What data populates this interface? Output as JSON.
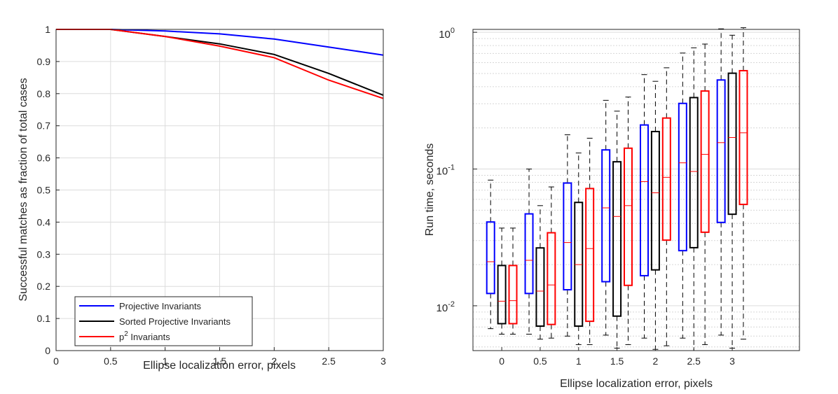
{
  "chart_data": [
    {
      "type": "line",
      "title": "",
      "xlabel": "Ellipse localization error, pixels",
      "ylabel": "Successful matches as fraction of total cases",
      "xlim": [
        0,
        3
      ],
      "ylim": [
        0,
        1
      ],
      "grid": true,
      "legend_position": "bottom-left",
      "x": [
        0,
        0.5,
        1,
        1.5,
        2,
        2.5,
        3
      ],
      "xtick_labels": [
        "0",
        "0.5",
        "1",
        "1.5",
        "2",
        "2.5",
        "3"
      ],
      "ytick_labels": [
        "0",
        "0.1",
        "0.2",
        "0.3",
        "0.4",
        "0.5",
        "0.6",
        "0.7",
        "0.8",
        "0.9",
        "1"
      ],
      "series": [
        {
          "name": "Projective Invariants",
          "color": "#0000ff",
          "values": [
            1,
            1,
            0.995,
            0.986,
            0.97,
            0.945,
            0.92
          ]
        },
        {
          "name": "Sorted Projective Invariants",
          "color": "#000000",
          "values": [
            1,
            1,
            0.978,
            0.955,
            0.922,
            0.863,
            0.795
          ]
        },
        {
          "name": "p2 Invariants",
          "legend_base": "p",
          "legend_sup": "2",
          "legend_rest": " Invariants",
          "color": "#ff0000",
          "values": [
            1,
            1,
            0.978,
            0.948,
            0.912,
            0.842,
            0.785
          ]
        }
      ]
    },
    {
      "type": "box",
      "title": "",
      "xlabel": "Ellipse localization error, pixels",
      "ylabel": "Run time, seconds",
      "yscale": "log",
      "ylim": [
        0.0047,
        1.05
      ],
      "grid": true,
      "categories": [
        "0",
        "0.5",
        "1",
        "1.5",
        "2",
        "2.5",
        "3"
      ],
      "ytick_labels": [
        {
          "base": "10",
          "exp": "-2",
          "value": 0.01
        },
        {
          "base": "10",
          "exp": "-1",
          "value": 0.1
        },
        {
          "base": "10",
          "exp": "0",
          "value": 1
        }
      ],
      "series": [
        {
          "name": "Projective Invariants",
          "color": "#0000ff",
          "boxes": [
            {
              "whisker_low": 0.0068,
              "q1": 0.0123,
              "median": 0.021,
              "q3": 0.041,
              "whisker_high": 0.083
            },
            {
              "whisker_low": 0.0062,
              "q1": 0.0123,
              "median": 0.0215,
              "q3": 0.047,
              "whisker_high": 0.1
            },
            {
              "whisker_low": 0.006,
              "q1": 0.0131,
              "median": 0.029,
              "q3": 0.079,
              "whisker_high": 0.178
            },
            {
              "whisker_low": 0.0061,
              "q1": 0.015,
              "median": 0.052,
              "q3": 0.138,
              "whisker_high": 0.318
            },
            {
              "whisker_low": 0.0058,
              "q1": 0.0166,
              "median": 0.081,
              "q3": 0.21,
              "whisker_high": 0.49
            },
            {
              "whisker_low": 0.0058,
              "q1": 0.0253,
              "median": 0.111,
              "q3": 0.302,
              "whisker_high": 0.705
            },
            {
              "whisker_low": 0.0061,
              "q1": 0.0407,
              "median": 0.156,
              "q3": 0.448,
              "whisker_high": 1.06
            }
          ]
        },
        {
          "name": "Sorted Projective Invariants",
          "color": "#000000",
          "boxes": [
            {
              "whisker_low": 0.0062,
              "q1": 0.0074,
              "median": 0.0108,
              "q3": 0.0197,
              "whisker_high": 0.037
            },
            {
              "whisker_low": 0.0057,
              "q1": 0.0071,
              "median": 0.0128,
              "q3": 0.0265,
              "whisker_high": 0.054
            },
            {
              "whisker_low": 0.0052,
              "q1": 0.0071,
              "median": 0.02,
              "q3": 0.057,
              "whisker_high": 0.131
            },
            {
              "whisker_low": 0.0049,
              "q1": 0.0084,
              "median": 0.045,
              "q3": 0.113,
              "whisker_high": 0.265
            },
            {
              "whisker_low": 0.0048,
              "q1": 0.0183,
              "median": 0.067,
              "q3": 0.188,
              "whisker_high": 0.438
            },
            {
              "whisker_low": 0.0047,
              "q1": 0.0266,
              "median": 0.096,
              "q3": 0.333,
              "whisker_high": 0.77
            },
            {
              "whisker_low": 0.0049,
              "q1": 0.0467,
              "median": 0.17,
              "q3": 0.502,
              "whisker_high": 0.952
            }
          ]
        },
        {
          "name": "p2 Invariants",
          "color": "#ff0000",
          "boxes": [
            {
              "whisker_low": 0.0062,
              "q1": 0.0074,
              "median": 0.0109,
              "q3": 0.0197,
              "whisker_high": 0.037
            },
            {
              "whisker_low": 0.0058,
              "q1": 0.0073,
              "median": 0.0142,
              "q3": 0.0342,
              "whisker_high": 0.074
            },
            {
              "whisker_low": 0.0052,
              "q1": 0.0077,
              "median": 0.0262,
              "q3": 0.072,
              "whisker_high": 0.168
            },
            {
              "whisker_low": 0.0052,
              "q1": 0.0141,
              "median": 0.054,
              "q3": 0.142,
              "whisker_high": 0.336
            },
            {
              "whisker_low": 0.0051,
              "q1": 0.0302,
              "median": 0.087,
              "q3": 0.236,
              "whisker_high": 0.55
            },
            {
              "whisker_low": 0.0052,
              "q1": 0.0345,
              "median": 0.128,
              "q3": 0.372,
              "whisker_high": 0.82
            },
            {
              "whisker_low": 0.0057,
              "q1": 0.0551,
              "median": 0.184,
              "q3": 0.524,
              "whisker_high": 1.08
            }
          ]
        }
      ]
    }
  ]
}
